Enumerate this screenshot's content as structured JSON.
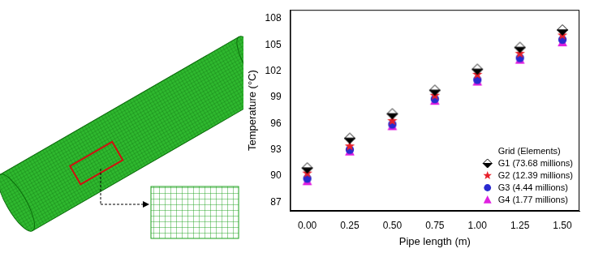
{
  "chart_data": {
    "type": "scatter",
    "x_label": "Pipe length (m)",
    "y_label": "Temperature (°C)",
    "legend_title": "Grid (Elements)",
    "legend": "lower right",
    "grid": false,
    "x": [
      0,
      0.25,
      0.5,
      0.75,
      1,
      1.25,
      1.5
    ],
    "series": [
      {
        "name": "G1 (73.68 millions)",
        "color": "#000000",
        "marker": "diamond",
        "values": [
          90.9,
          94.3,
          97.1,
          99.8,
          102.2,
          104.7,
          106.7
        ]
      },
      {
        "name": "G2 (12.39 millions)",
        "color": "#e8202a",
        "marker": "star",
        "values": [
          90.3,
          93.4,
          96.3,
          99.2,
          101.6,
          104.0,
          106.1
        ]
      },
      {
        "name": "G3 (4.44 millions)",
        "color": "#2a2ad0",
        "marker": "circle",
        "values": [
          89.7,
          93.0,
          95.9,
          98.8,
          101.0,
          103.5,
          105.6
        ]
      },
      {
        "name": "G4 (1.77 millions)",
        "color": "#e020e0",
        "marker": "triangle",
        "values": [
          89.4,
          92.8,
          95.7,
          98.6,
          100.8,
          103.3,
          105.3
        ]
      }
    ],
    "xlim": [
      -0.1,
      1.6
    ],
    "xticks": [
      {
        "value": 0,
        "label": "0.00"
      },
      0.25,
      {
        "value": 0.5,
        "label": "0.50"
      },
      0.75,
      {
        "value": 1,
        "label": "1.00"
      },
      1.25,
      {
        "value": 1.5,
        "label": "1.50"
      }
    ],
    "ylim": [
      86,
      109
    ],
    "yticks": [
      87,
      90,
      93,
      96,
      99,
      102,
      105,
      108
    ]
  }
}
